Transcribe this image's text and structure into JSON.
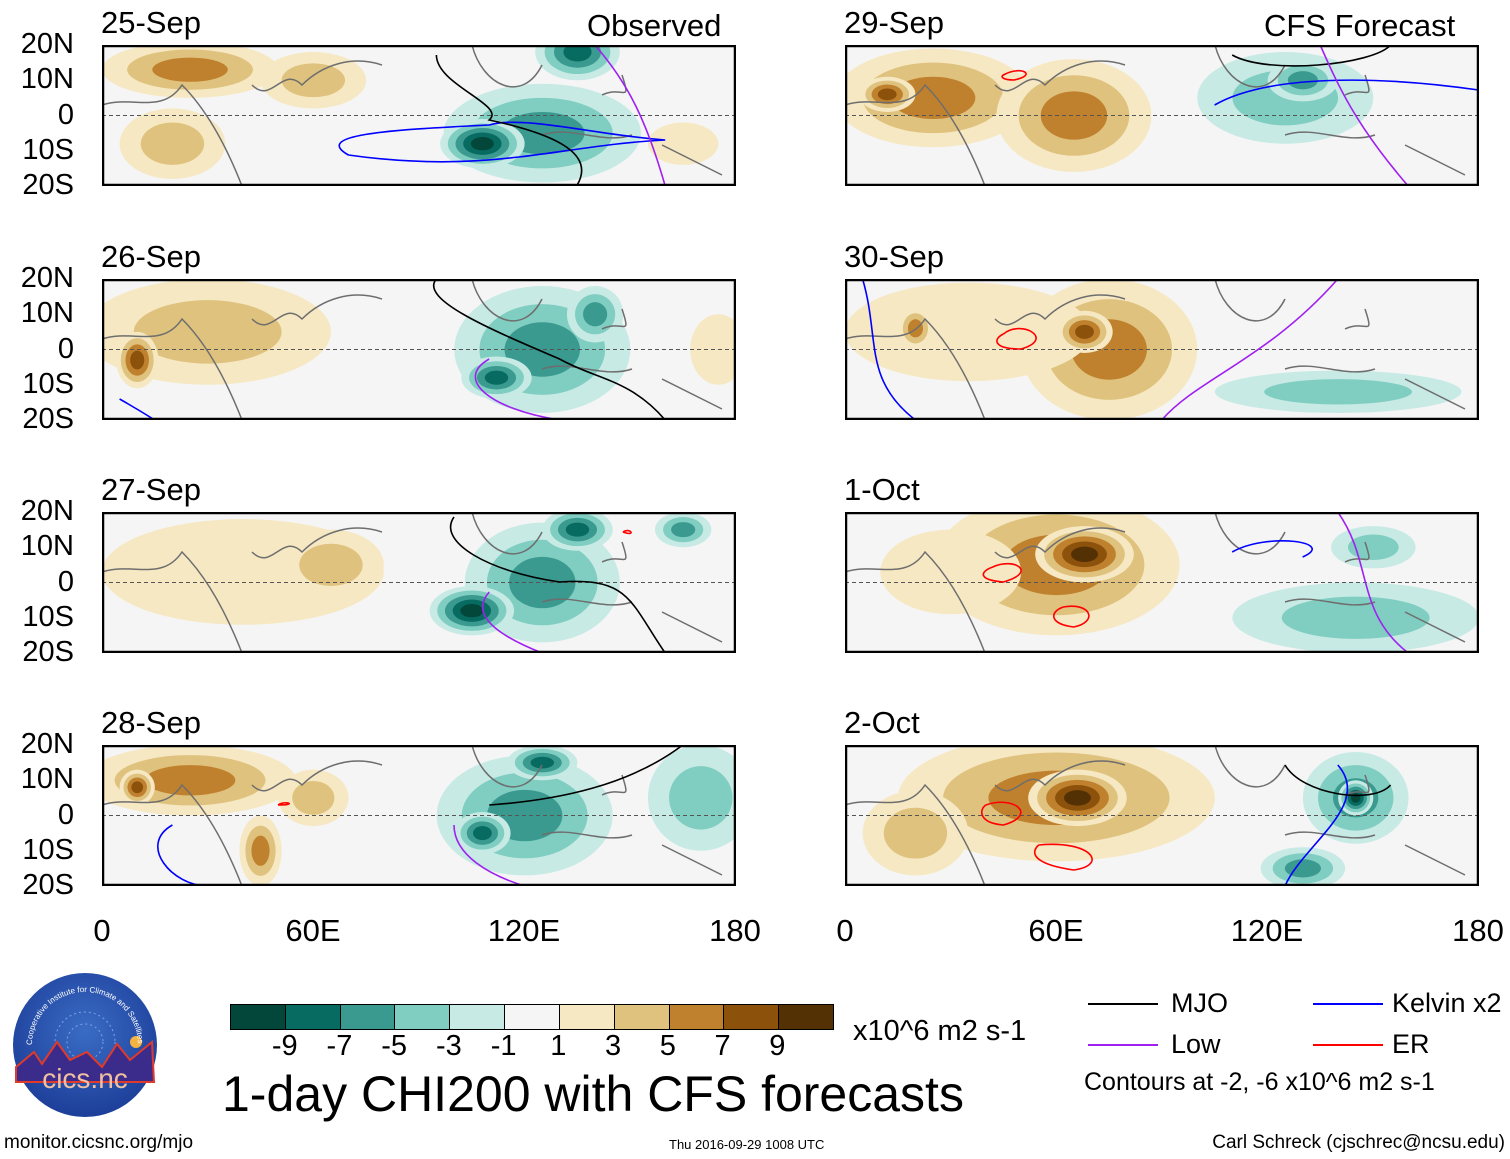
{
  "left_header": "Observed",
  "right_header": "CFS Forecast",
  "panels_left": [
    {
      "date": "25-Sep"
    },
    {
      "date": "26-Sep"
    },
    {
      "date": "27-Sep"
    },
    {
      "date": "28-Sep"
    }
  ],
  "panels_right": [
    {
      "date": "29-Sep"
    },
    {
      "date": "30-Sep"
    },
    {
      "date": "1-Oct"
    },
    {
      "date": "2-Oct"
    }
  ],
  "lat_ticks": [
    "20N",
    "10N",
    "0",
    "10S",
    "20S"
  ],
  "lon_ticks": [
    "0",
    "60E",
    "120E",
    "180"
  ],
  "colorbar": {
    "labels": [
      "-9",
      "-7",
      "-5",
      "-3",
      "-1",
      "1",
      "3",
      "5",
      "7",
      "9"
    ],
    "colors": [
      "#03473b",
      "#076b61",
      "#3a9a8f",
      "#80cdc1",
      "#c7eae5",
      "#f5f5f5",
      "#f6e8c3",
      "#dfc27d",
      "#bf812d",
      "#8c510a",
      "#543005"
    ],
    "units": "x10^6 m2 s-1"
  },
  "title": "1-day CHI200 with CFS forecasts",
  "legend": {
    "items": [
      {
        "label": "MJO",
        "color": "#000000"
      },
      {
        "label": "Kelvin x2",
        "color": "#0000ff"
      },
      {
        "label": "Low",
        "color": "#a020f0"
      },
      {
        "label": "ER",
        "color": "#ff0000"
      }
    ],
    "contours_note": "Contours at -2, -6 x10^6 m2 s-1"
  },
  "logo_text": "cics.nc",
  "logo_ring_text": "Cooperative Institute for Climate and Satellites",
  "footer": {
    "url": "monitor.cicsnc.org/mjo",
    "timestamp": "Thu 2016-09-29 1008 UTC",
    "author": "Carl Schreck (cjschrec@ncsu.edu)"
  }
}
